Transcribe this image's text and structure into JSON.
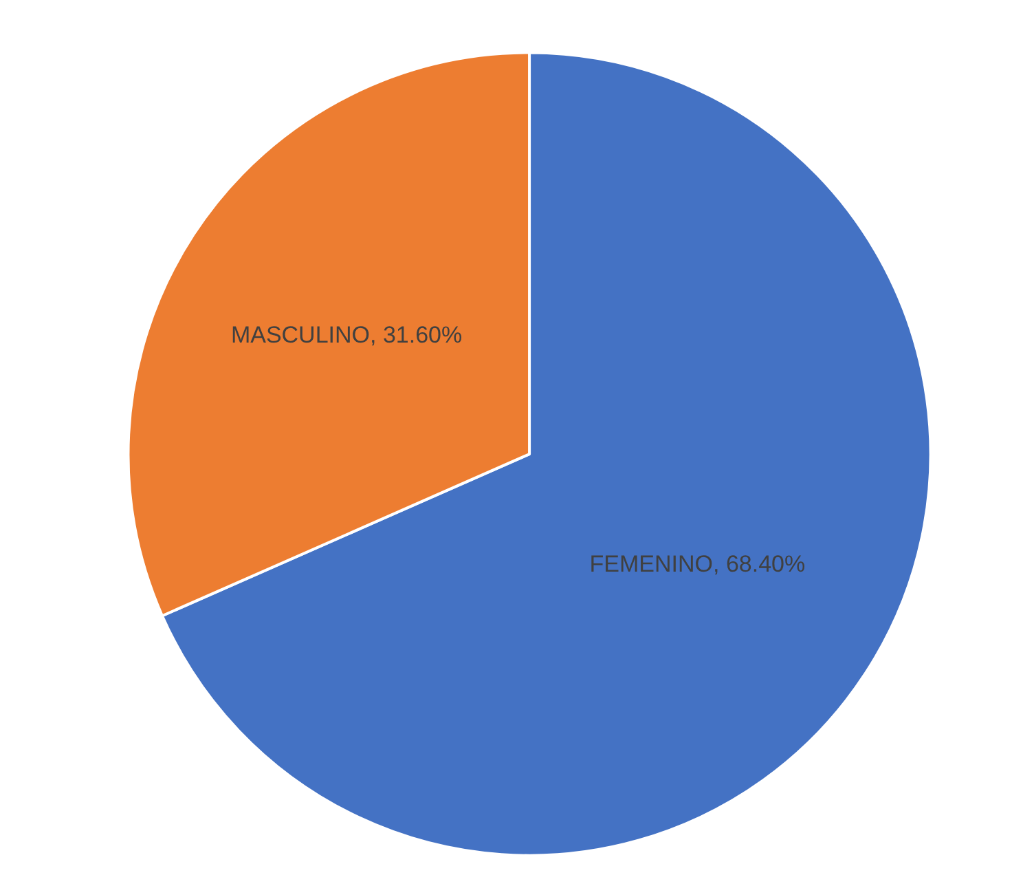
{
  "chart_data": {
    "type": "pie",
    "categories": [
      "FEMENINO",
      "MASCULINO"
    ],
    "values": [
      68.4,
      31.6
    ],
    "value_labels": [
      "68.40%",
      "31.60%"
    ],
    "colors": [
      "#4472c4",
      "#ed7d31"
    ],
    "legend": false
  }
}
